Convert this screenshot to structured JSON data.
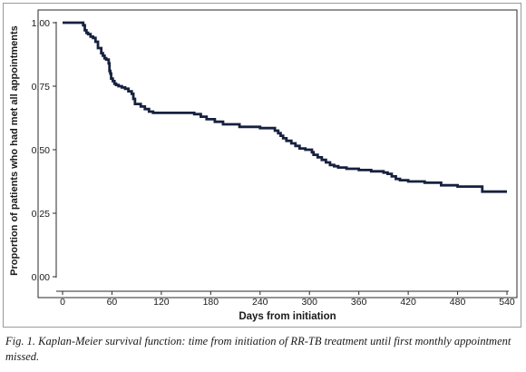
{
  "chart_data": {
    "type": "line",
    "title": "",
    "xlabel": "Days from initiation",
    "ylabel": "Proportion of patients who had met all appointments",
    "xlim": [
      0,
      540
    ],
    "ylim": [
      0,
      1
    ],
    "x_ticks": [
      "0",
      "60",
      "120",
      "180",
      "240",
      "300",
      "360",
      "420",
      "480",
      "540"
    ],
    "y_ticks": [
      "0.00",
      "0.25",
      "0.50",
      "0.75",
      "1.00"
    ],
    "grid": false,
    "line_color": "#16213f",
    "series": [
      {
        "step": "post",
        "x": [
          0,
          25,
          27,
          29,
          31,
          34,
          37,
          40,
          43,
          47,
          49,
          51,
          53,
          56,
          57,
          58,
          59,
          61,
          63,
          65,
          68,
          72,
          76,
          80,
          84,
          86,
          88,
          95,
          100,
          105,
          110,
          160,
          168,
          175,
          185,
          195,
          215,
          240,
          258,
          262,
          265,
          268,
          272,
          278,
          283,
          288,
          295,
          303,
          305,
          310,
          315,
          320,
          325,
          330,
          335,
          345,
          360,
          375,
          390,
          395,
          400,
          405,
          410,
          420,
          440,
          460,
          480,
          510,
          540
        ],
        "y": [
          1.0,
          0.99,
          0.97,
          0.96,
          0.955,
          0.945,
          0.94,
          0.925,
          0.9,
          0.88,
          0.87,
          0.86,
          0.855,
          0.84,
          0.81,
          0.8,
          0.78,
          0.77,
          0.76,
          0.755,
          0.75,
          0.745,
          0.74,
          0.73,
          0.72,
          0.7,
          0.68,
          0.67,
          0.66,
          0.65,
          0.645,
          0.64,
          0.63,
          0.62,
          0.61,
          0.6,
          0.59,
          0.585,
          0.575,
          0.565,
          0.555,
          0.545,
          0.535,
          0.525,
          0.515,
          0.505,
          0.5,
          0.49,
          0.48,
          0.47,
          0.46,
          0.45,
          0.44,
          0.435,
          0.43,
          0.425,
          0.42,
          0.415,
          0.41,
          0.405,
          0.395,
          0.385,
          0.38,
          0.375,
          0.37,
          0.36,
          0.355,
          0.335,
          0.335
        ]
      }
    ]
  },
  "caption": "Fig. 1. Kaplan-Meier survival function: time from initiation of RR-TB treatment until first monthly appointment missed."
}
